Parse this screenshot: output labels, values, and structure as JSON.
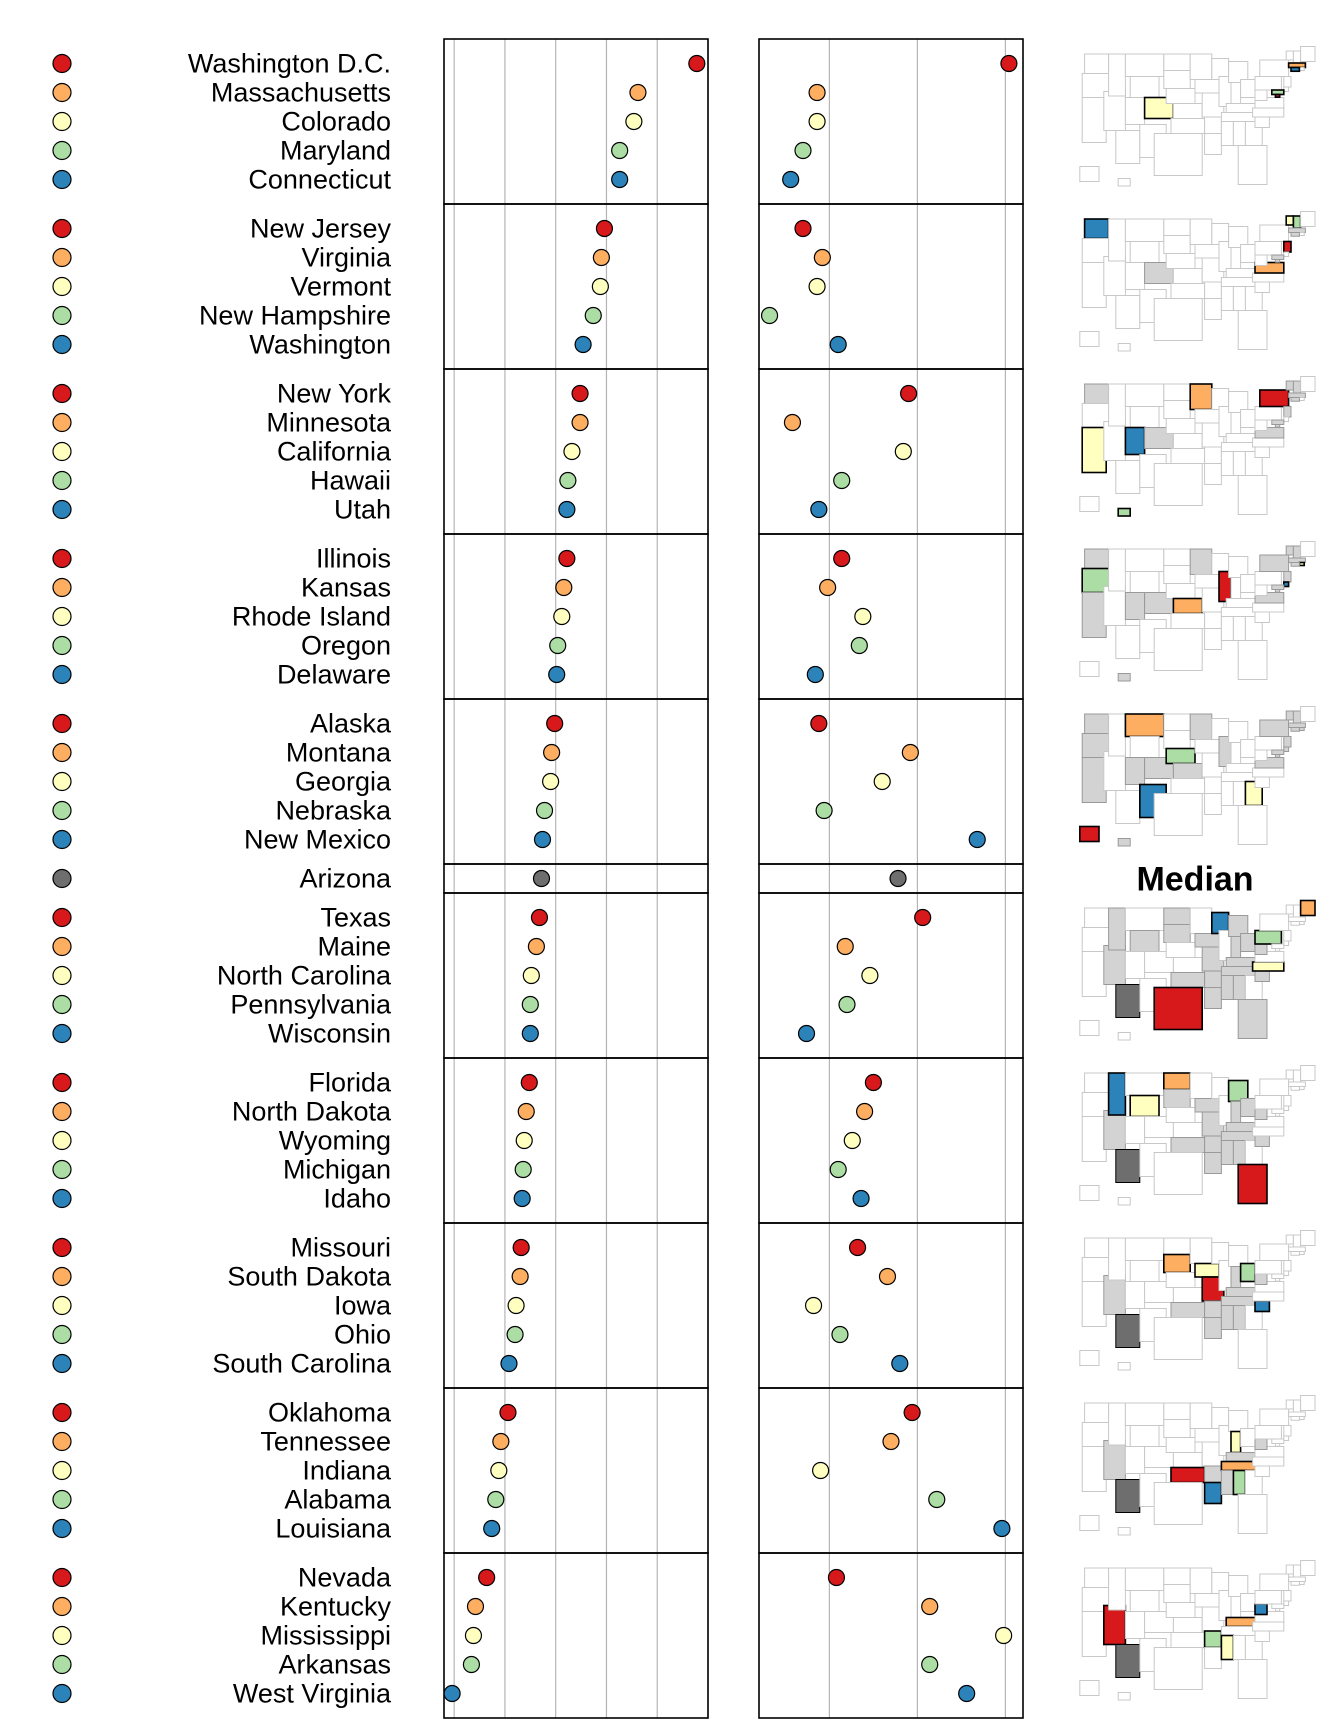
{
  "chart_data": {
    "type": "linked-micromap-dotplot",
    "title": "",
    "colors": {
      "c1": "#d7191c",
      "c2": "#fdae61",
      "c3": "#ffffbf",
      "c4": "#abdda4",
      "c5": "#2b83ba",
      "median": "#6e6e6e"
    },
    "median_label": "Median",
    "panel1": {
      "xlim": [
        14,
        40
      ],
      "ticks": [
        15,
        20,
        25,
        30,
        35,
        40
      ],
      "grid": true
    },
    "panel2": {
      "xlim": [
        6,
        21
      ],
      "ticks": [
        10,
        15,
        20
      ],
      "grid": true
    },
    "groups": [
      {
        "states": [
          "Washington D.C.",
          "Massachusetts",
          "Colorado",
          "Maryland",
          "Connecticut"
        ],
        "v1": [
          38.9,
          33.1,
          32.7,
          31.3,
          31.3
        ],
        "v2": [
          20.2,
          9.3,
          9.3,
          8.5,
          7.8
        ]
      },
      {
        "states": [
          "New Jersey",
          "Virginia",
          "Vermont",
          "New Hampshire",
          "Washington"
        ],
        "v1": [
          29.8,
          29.5,
          29.4,
          28.7,
          27.7
        ],
        "v2": [
          8.5,
          9.6,
          9.3,
          6.6,
          10.5
        ]
      },
      {
        "states": [
          "New York",
          "Minnesota",
          "California",
          "Hawaii",
          "Utah"
        ],
        "v1": [
          27.4,
          27.4,
          26.6,
          26.2,
          26.1
        ],
        "v2": [
          14.5,
          7.9,
          14.2,
          10.7,
          9.4
        ]
      },
      {
        "states": [
          "Illinois",
          "Kansas",
          "Rhode Island",
          "Oregon",
          "Delaware"
        ],
        "v1": [
          26.1,
          25.8,
          25.6,
          25.2,
          25.1
        ],
        "v2": [
          10.7,
          9.9,
          11.9,
          11.7,
          9.2
        ]
      },
      {
        "states": [
          "Alaska",
          "Montana",
          "Georgia",
          "Nebraska",
          "New Mexico"
        ],
        "v1": [
          24.9,
          24.6,
          24.5,
          23.9,
          23.7
        ],
        "v2": [
          9.4,
          14.6,
          13.0,
          9.7,
          18.4
        ]
      },
      {
        "states": [
          "Arizona"
        ],
        "v1": [
          23.6
        ],
        "v2": [
          13.9
        ],
        "median": true
      },
      {
        "states": [
          "Texas",
          "Maine",
          "North Carolina",
          "Pennsylvania",
          "Wisconsin"
        ],
        "v1": [
          23.4,
          23.1,
          22.6,
          22.5,
          22.5
        ],
        "v2": [
          15.3,
          10.9,
          12.3,
          11.0,
          8.7
        ]
      },
      {
        "states": [
          "Florida",
          "North Dakota",
          "Wyoming",
          "Michigan",
          "Idaho"
        ],
        "v1": [
          22.4,
          22.1,
          21.9,
          21.8,
          21.7
        ],
        "v2": [
          12.5,
          12.0,
          11.3,
          10.5,
          11.8
        ]
      },
      {
        "states": [
          "Missouri",
          "South Dakota",
          "Iowa",
          "Ohio",
          "South Carolina"
        ],
        "v1": [
          21.6,
          21.5,
          21.1,
          21.0,
          20.4
        ],
        "v2": [
          11.6,
          13.3,
          9.1,
          10.6,
          14.0
        ]
      },
      {
        "states": [
          "Oklahoma",
          "Tennessee",
          "Indiana",
          "Alabama",
          "Louisiana"
        ],
        "v1": [
          20.3,
          19.6,
          19.4,
          19.1,
          18.7
        ],
        "v2": [
          14.7,
          13.5,
          9.5,
          16.1,
          19.8
        ]
      },
      {
        "states": [
          "Nevada",
          "Kentucky",
          "Mississippi",
          "Arkansas",
          "West Virginia"
        ],
        "v1": [
          18.2,
          17.1,
          16.9,
          16.7,
          14.8
        ],
        "v2": [
          10.4,
          15.7,
          19.9,
          15.7,
          17.8
        ]
      }
    ]
  }
}
